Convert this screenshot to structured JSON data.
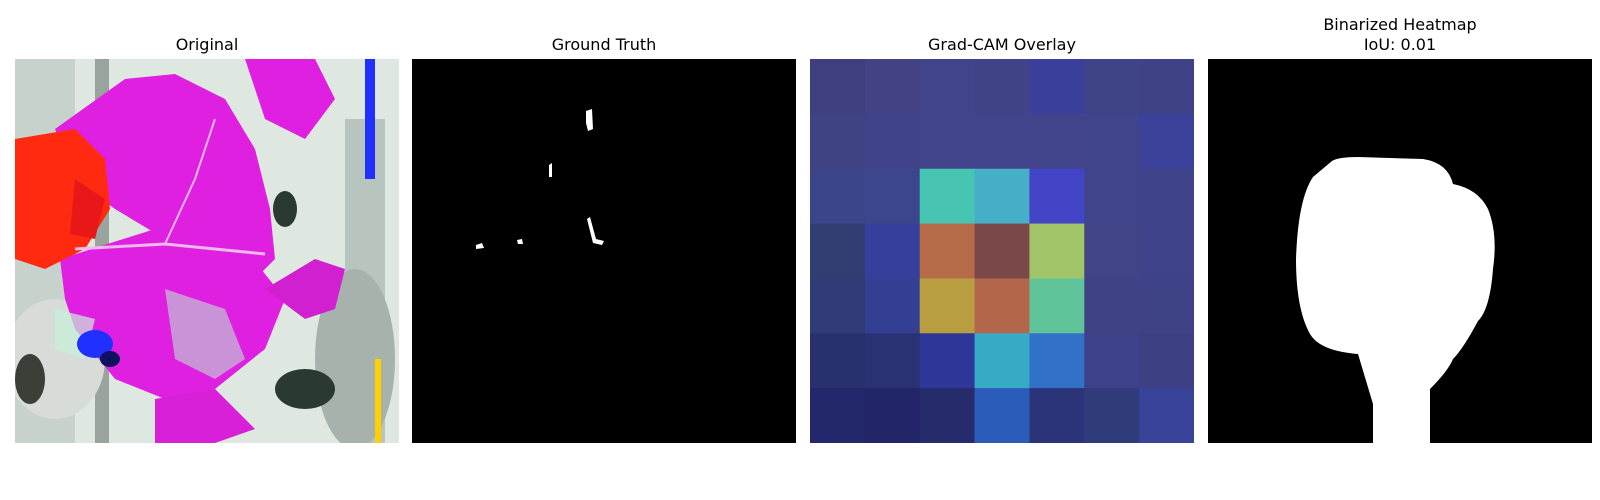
{
  "panels": [
    {
      "title": "Original"
    },
    {
      "title": "Ground Truth"
    },
    {
      "title": "Grad-CAM Overlay"
    },
    {
      "title": "Binarized Heatmap",
      "subtitle": "IoU: 0.01"
    }
  ],
  "colors": {
    "background": "#ffffff",
    "mask_background": "#000000",
    "mask_foreground": "#ffffff",
    "original_magenta": "#e020e0",
    "original_red": "#ff2a10"
  },
  "gradcam_grid": [
    [
      "#3d3f7e",
      "#414385",
      "#41448a",
      "#404388",
      "#3b3f9c",
      "#3f4388",
      "#3f4286"
    ],
    [
      "#3f4384",
      "#41438a",
      "#41448a",
      "#41448a",
      "#41448a",
      "#40448a",
      "#3c419a"
    ],
    [
      "#3b468a",
      "#3b468c",
      "#47c5b2",
      "#46aec6",
      "#4344c6",
      "#40448a",
      "#3f4389"
    ],
    [
      "#323e72",
      "#34409c",
      "#b56a48",
      "#7a4848",
      "#a2c468",
      "#414486",
      "#3f4389"
    ],
    [
      "#303b78",
      "#333f92",
      "#b89e40",
      "#b4664a",
      "#60c49a",
      "#3f4386",
      "#3e4287"
    ],
    [
      "#28306e",
      "#2b3274",
      "#2e3698",
      "#37aac6",
      "#3272c6",
      "#3d428a",
      "#3d4184"
    ],
    [
      "#23286c",
      "#222668",
      "#262b6c",
      "#2c5cba",
      "#2b3478",
      "#303b7a",
      "#3a439a"
    ]
  ]
}
